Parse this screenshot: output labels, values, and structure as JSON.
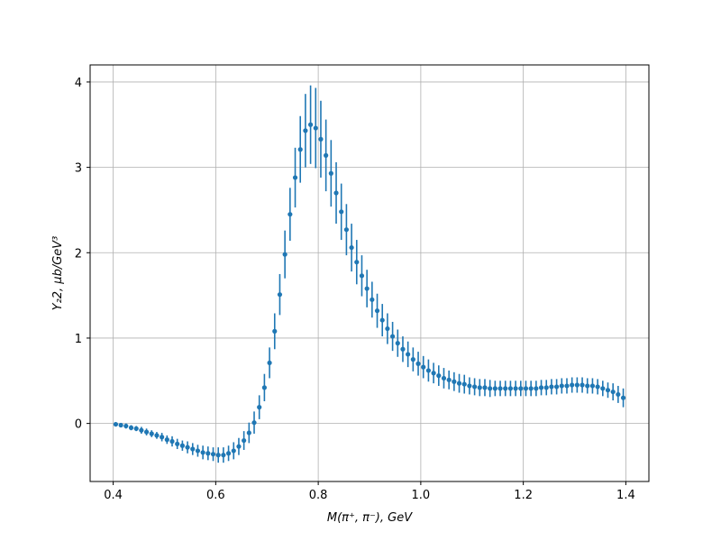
{
  "chart_data": {
    "type": "scatter",
    "title": "",
    "xlabel": "M(π⁺, π⁻), GeV",
    "ylabel": "Y₂2, μb/GeV³",
    "xlim": [
      0.355,
      1.445
    ],
    "ylim": [
      -0.68,
      4.2
    ],
    "xticks": [
      0.4,
      0.6,
      0.8,
      1.0,
      1.2,
      1.4
    ],
    "xtick_labels": [
      "0.4",
      "0.6",
      "0.8",
      "1.0",
      "1.2",
      "1.4"
    ],
    "yticks": [
      0,
      1,
      2,
      3,
      4
    ],
    "ytick_labels": [
      "0",
      "1",
      "2",
      "3",
      "4"
    ],
    "grid": true,
    "color": "#1f77b4",
    "series": [
      {
        "x": [
          0.405,
          0.415,
          0.425,
          0.435,
          0.445,
          0.455,
          0.465,
          0.475,
          0.485,
          0.495,
          0.505,
          0.515,
          0.525,
          0.535,
          0.545,
          0.555,
          0.565,
          0.575,
          0.585,
          0.595,
          0.605,
          0.615,
          0.625,
          0.635,
          0.645,
          0.655,
          0.665,
          0.675,
          0.685,
          0.695,
          0.705,
          0.715,
          0.725,
          0.735,
          0.745,
          0.755,
          0.765,
          0.775,
          0.785,
          0.795,
          0.805,
          0.815,
          0.825,
          0.835,
          0.845,
          0.855,
          0.865,
          0.875,
          0.885,
          0.895,
          0.905,
          0.915,
          0.925,
          0.935,
          0.945,
          0.955,
          0.965,
          0.975,
          0.985,
          0.995,
          1.005,
          1.015,
          1.025,
          1.035,
          1.045,
          1.055,
          1.065,
          1.075,
          1.085,
          1.095,
          1.105,
          1.115,
          1.125,
          1.135,
          1.145,
          1.155,
          1.165,
          1.175,
          1.185,
          1.195,
          1.205,
          1.215,
          1.225,
          1.235,
          1.245,
          1.255,
          1.265,
          1.275,
          1.285,
          1.295,
          1.305,
          1.315,
          1.325,
          1.335,
          1.345,
          1.355,
          1.365,
          1.375,
          1.385,
          1.395
        ],
        "y": [
          -0.01,
          -0.02,
          -0.03,
          -0.05,
          -0.06,
          -0.08,
          -0.1,
          -0.12,
          -0.14,
          -0.16,
          -0.19,
          -0.21,
          -0.24,
          -0.26,
          -0.28,
          -0.3,
          -0.32,
          -0.34,
          -0.35,
          -0.36,
          -0.37,
          -0.37,
          -0.35,
          -0.32,
          -0.27,
          -0.2,
          -0.11,
          0.01,
          0.19,
          0.42,
          0.71,
          1.08,
          1.51,
          1.98,
          2.45,
          2.88,
          3.21,
          3.43,
          3.5,
          3.46,
          3.33,
          3.14,
          2.93,
          2.7,
          2.48,
          2.27,
          2.06,
          1.89,
          1.73,
          1.58,
          1.45,
          1.32,
          1.21,
          1.11,
          1.02,
          0.94,
          0.87,
          0.81,
          0.75,
          0.7,
          0.66,
          0.62,
          0.59,
          0.56,
          0.53,
          0.51,
          0.49,
          0.47,
          0.46,
          0.44,
          0.43,
          0.42,
          0.42,
          0.41,
          0.41,
          0.41,
          0.41,
          0.41,
          0.41,
          0.41,
          0.41,
          0.41,
          0.41,
          0.42,
          0.42,
          0.43,
          0.43,
          0.44,
          0.44,
          0.45,
          0.45,
          0.45,
          0.44,
          0.44,
          0.43,
          0.41,
          0.39,
          0.37,
          0.34,
          0.3
        ],
        "yerr": [
          0.02,
          0.02,
          0.03,
          0.03,
          0.03,
          0.04,
          0.04,
          0.04,
          0.04,
          0.05,
          0.05,
          0.06,
          0.06,
          0.06,
          0.07,
          0.07,
          0.07,
          0.08,
          0.08,
          0.08,
          0.09,
          0.09,
          0.09,
          0.1,
          0.1,
          0.11,
          0.12,
          0.13,
          0.14,
          0.16,
          0.18,
          0.21,
          0.24,
          0.28,
          0.31,
          0.35,
          0.39,
          0.43,
          0.46,
          0.47,
          0.45,
          0.42,
          0.39,
          0.36,
          0.33,
          0.3,
          0.28,
          0.26,
          0.24,
          0.22,
          0.21,
          0.2,
          0.19,
          0.18,
          0.17,
          0.16,
          0.15,
          0.15,
          0.14,
          0.14,
          0.13,
          0.13,
          0.12,
          0.12,
          0.12,
          0.11,
          0.11,
          0.11,
          0.11,
          0.1,
          0.1,
          0.1,
          0.1,
          0.1,
          0.09,
          0.09,
          0.09,
          0.09,
          0.09,
          0.09,
          0.09,
          0.09,
          0.09,
          0.09,
          0.09,
          0.09,
          0.09,
          0.09,
          0.09,
          0.09,
          0.09,
          0.09,
          0.09,
          0.09,
          0.09,
          0.09,
          0.09,
          0.1,
          0.1,
          0.11
        ]
      }
    ]
  }
}
